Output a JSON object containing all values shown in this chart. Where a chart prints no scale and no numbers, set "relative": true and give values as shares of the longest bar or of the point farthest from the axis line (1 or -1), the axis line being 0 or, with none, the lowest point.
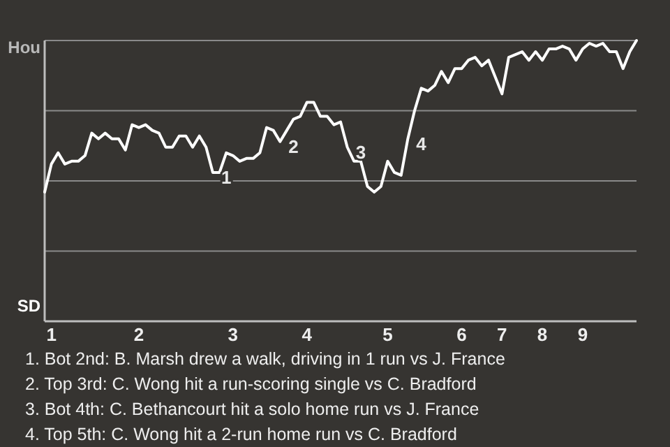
{
  "chart_data": {
    "type": "line",
    "relative": true,
    "categories": [
      null,
      "1",
      null,
      null,
      null,
      null,
      null,
      null,
      null,
      null,
      null,
      null,
      null,
      null,
      "2",
      null,
      null,
      null,
      null,
      null,
      null,
      null,
      null,
      null,
      null,
      null,
      null,
      null,
      "3",
      null,
      null,
      null,
      null,
      null,
      null,
      null,
      null,
      null,
      null,
      "4",
      null,
      null,
      null,
      null,
      null,
      null,
      null,
      null,
      null,
      null,
      null,
      "5",
      null,
      null,
      null,
      null,
      null,
      null,
      null,
      null,
      null,
      null,
      "6",
      null,
      null,
      null,
      null,
      null,
      "7",
      null,
      null,
      null,
      null,
      null,
      "8",
      null,
      null,
      null,
      null,
      null,
      "9",
      null,
      null,
      null,
      null,
      null,
      null,
      null,
      null
    ],
    "series": [
      {
        "color": "#ffffff",
        "values": [
          0.46,
          0.56,
          0.6,
          0.56,
          0.57,
          0.57,
          0.59,
          0.67,
          0.65,
          0.67,
          0.65,
          0.65,
          0.61,
          0.7,
          0.69,
          0.7,
          0.68,
          0.67,
          0.62,
          0.62,
          0.66,
          0.66,
          0.62,
          0.66,
          0.62,
          0.53,
          0.53,
          0.6,
          0.59,
          0.57,
          0.58,
          0.58,
          0.6,
          0.69,
          0.68,
          0.64,
          0.68,
          0.72,
          0.73,
          0.78,
          0.78,
          0.73,
          0.73,
          0.7,
          0.71,
          0.62,
          0.57,
          0.57,
          0.48,
          0.46,
          0.48,
          0.57,
          0.53,
          0.52,
          0.65,
          0.75,
          0.83,
          0.82,
          0.84,
          0.89,
          0.85,
          0.9,
          0.9,
          0.93,
          0.94,
          0.91,
          0.93,
          0.87,
          0.81,
          0.94,
          0.95,
          0.96,
          0.93,
          0.96,
          0.93,
          0.97,
          0.97,
          0.98,
          0.97,
          0.93,
          0.97,
          0.99,
          0.98,
          0.99,
          0.96,
          0.96,
          0.9,
          0.96,
          1.0
        ]
      }
    ],
    "ref_lines": [
      {
        "axis": "y",
        "value": 0.25,
        "color": "#8a8a8a"
      },
      {
        "axis": "y",
        "value": 0.5,
        "color": "#8a8a8a"
      },
      {
        "axis": "y",
        "value": 0.75,
        "color": "#8a8a8a"
      },
      {
        "axis": "y",
        "value": 1,
        "color": "#8a8a8a"
      }
    ],
    "annotations": [
      "Hou",
      "SD",
      "1",
      "2",
      "3",
      "4",
      "1. Bot 2nd: B. Marsh drew a walk, driving in 1 run vs J. France",
      "2. Top 3rd: C. Wong hit a run-scoring single vs C. Bradford",
      "3. Bot 4th: C. Bethancourt hit a solo home run vs J. France",
      "4. Top 5th: C. Wong hit a 2-run home run vs C. Bradford"
    ],
    "line_style": "solid",
    "marker": "none"
  }
}
